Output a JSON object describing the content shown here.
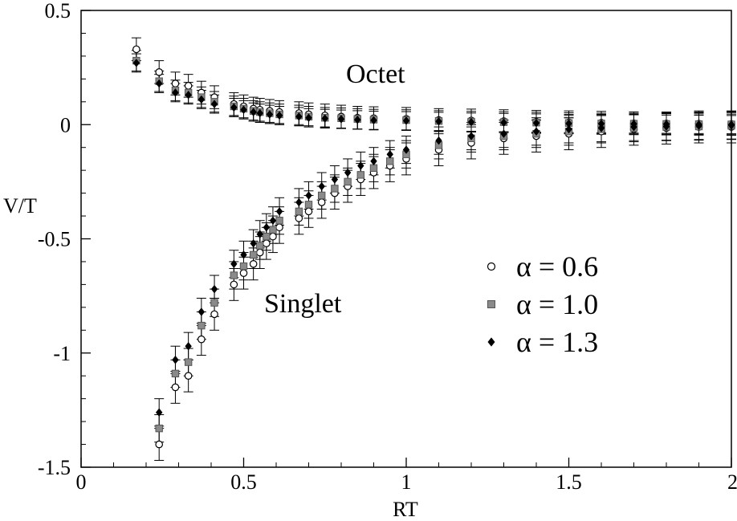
{
  "chart_data": {
    "type": "scatter",
    "title": "",
    "xlabel": "RT",
    "ylabel": "V/T",
    "xlim": [
      0,
      2
    ],
    "ylim": [
      -1.5,
      0.5
    ],
    "xticks": [
      "0",
      "0.5",
      "1",
      "1.5",
      "2"
    ],
    "yticks": [
      "0.5",
      "0",
      "-0.5",
      "-1",
      "-1.5"
    ],
    "annotations": [
      "Octet",
      "Singlet"
    ],
    "legend_position": "right",
    "grid": false,
    "series": [
      {
        "name": "α = 0.6",
        "marker": "open-circle",
        "color": "#000000",
        "singlet": {
          "x": [
            0.24,
            0.29,
            0.33,
            0.37,
            0.41,
            0.47,
            0.5,
            0.53,
            0.55,
            0.57,
            0.59,
            0.61,
            0.67,
            0.7,
            0.74,
            0.78,
            0.82,
            0.86,
            0.9,
            0.95,
            1.0,
            1.1,
            1.2,
            1.3,
            1.4,
            1.5,
            1.6,
            1.7,
            1.8,
            1.9,
            2.0
          ],
          "y": [
            -1.4,
            -1.15,
            -1.1,
            -0.94,
            -0.83,
            -0.7,
            -0.65,
            -0.61,
            -0.56,
            -0.52,
            -0.49,
            -0.45,
            -0.41,
            -0.38,
            -0.34,
            -0.3,
            -0.27,
            -0.24,
            -0.21,
            -0.18,
            -0.15,
            -0.11,
            -0.08,
            -0.06,
            -0.05,
            -0.04,
            -0.03,
            -0.02,
            -0.015,
            -0.01,
            -0.01
          ],
          "err": 0.07
        },
        "octet": {
          "x": [
            0.17,
            0.24,
            0.29,
            0.33,
            0.37,
            0.41,
            0.47,
            0.5,
            0.53,
            0.55,
            0.58,
            0.61,
            0.67,
            0.7,
            0.75,
            0.8,
            0.85,
            0.9,
            1.0,
            1.1,
            1.2,
            1.3,
            1.4,
            1.5,
            1.6,
            1.7,
            1.8,
            1.9,
            2.0
          ],
          "y": [
            0.33,
            0.23,
            0.18,
            0.17,
            0.14,
            0.12,
            0.09,
            0.08,
            0.07,
            0.065,
            0.06,
            0.055,
            0.05,
            0.045,
            0.04,
            0.035,
            0.03,
            0.028,
            0.025,
            0.02,
            0.018,
            0.015,
            0.012,
            0.01,
            0.008,
            0.006,
            0.005,
            0.004,
            0.003
          ],
          "err": 0.05
        }
      },
      {
        "name": "α = 1.0",
        "marker": "gray-square",
        "color": "#888888",
        "singlet": {
          "x": [
            0.24,
            0.29,
            0.33,
            0.37,
            0.41,
            0.47,
            0.5,
            0.53,
            0.55,
            0.57,
            0.59,
            0.61,
            0.67,
            0.7,
            0.74,
            0.78,
            0.82,
            0.86,
            0.9,
            0.95,
            1.0,
            1.1,
            1.2,
            1.3,
            1.4,
            1.5,
            1.6,
            1.7,
            1.8,
            1.9,
            2.0
          ],
          "y": [
            -1.33,
            -1.09,
            -1.04,
            -0.88,
            -0.78,
            -0.66,
            -0.62,
            -0.57,
            -0.53,
            -0.49,
            -0.46,
            -0.42,
            -0.38,
            -0.35,
            -0.31,
            -0.28,
            -0.25,
            -0.22,
            -0.19,
            -0.16,
            -0.13,
            -0.09,
            -0.06,
            -0.05,
            -0.04,
            -0.03,
            -0.02,
            -0.015,
            -0.01,
            -0.008,
            -0.005
          ],
          "err": 0.06
        },
        "octet": {
          "x": [
            0.17,
            0.24,
            0.29,
            0.33,
            0.37,
            0.41,
            0.47,
            0.5,
            0.53,
            0.55,
            0.58,
            0.61,
            0.67,
            0.7,
            0.75,
            0.8,
            0.85,
            0.9,
            1.0,
            1.1,
            1.2,
            1.3,
            1.4,
            1.5,
            1.6,
            1.7,
            1.8,
            1.9,
            2.0
          ],
          "y": [
            0.28,
            0.19,
            0.15,
            0.14,
            0.12,
            0.1,
            0.08,
            0.07,
            0.06,
            0.055,
            0.05,
            0.045,
            0.04,
            0.035,
            0.03,
            0.028,
            0.025,
            0.022,
            0.02,
            0.016,
            0.013,
            0.011,
            0.009,
            0.007,
            0.005,
            0.004,
            0.003,
            0.002,
            0.001
          ],
          "err": 0.045
        }
      },
      {
        "name": "α = 1.3",
        "marker": "filled-diamond",
        "color": "#000000",
        "singlet": {
          "x": [
            0.24,
            0.29,
            0.33,
            0.37,
            0.41,
            0.47,
            0.5,
            0.53,
            0.55,
            0.57,
            0.59,
            0.61,
            0.67,
            0.7,
            0.74,
            0.78,
            0.82,
            0.86,
            0.9,
            0.95,
            1.0,
            1.1,
            1.2,
            1.3,
            1.4,
            1.5,
            1.6,
            1.7,
            1.8,
            1.9,
            2.0
          ],
          "y": [
            -1.26,
            -1.03,
            -0.97,
            -0.82,
            -0.72,
            -0.61,
            -0.57,
            -0.52,
            -0.48,
            -0.45,
            -0.42,
            -0.38,
            -0.34,
            -0.31,
            -0.27,
            -0.24,
            -0.21,
            -0.18,
            -0.16,
            -0.13,
            -0.11,
            -0.07,
            -0.05,
            -0.04,
            -0.03,
            -0.02,
            -0.015,
            -0.01,
            -0.008,
            -0.005,
            -0.003
          ],
          "err": 0.06
        },
        "octet": {
          "x": [
            0.17,
            0.24,
            0.29,
            0.33,
            0.37,
            0.41,
            0.47,
            0.5,
            0.53,
            0.55,
            0.58,
            0.61,
            0.67,
            0.7,
            0.75,
            0.8,
            0.85,
            0.9,
            1.0,
            1.1,
            1.2,
            1.3,
            1.4,
            1.5,
            1.6,
            1.7,
            1.8,
            1.9,
            2.0
          ],
          "y": [
            0.27,
            0.18,
            0.14,
            0.13,
            0.11,
            0.09,
            0.075,
            0.065,
            0.055,
            0.05,
            0.045,
            0.04,
            0.035,
            0.03,
            0.027,
            0.024,
            0.021,
            0.019,
            0.017,
            0.014,
            0.011,
            0.009,
            0.007,
            0.005,
            0.004,
            0.003,
            0.002,
            0.001,
            0.0
          ],
          "err": 0.04
        }
      }
    ]
  }
}
